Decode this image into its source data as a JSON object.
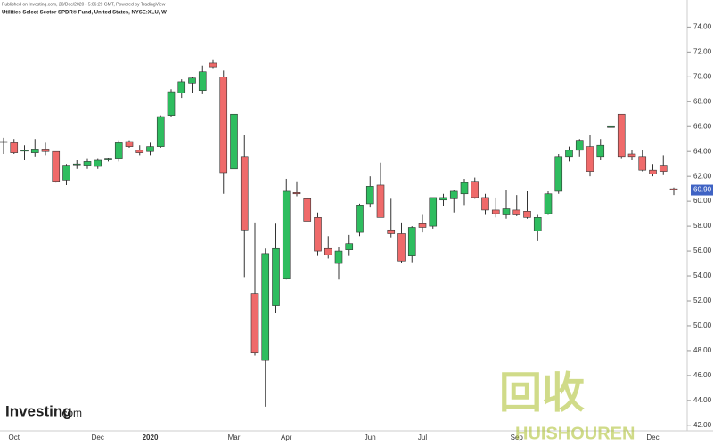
{
  "chart_data": {
    "type": "candlestick",
    "published": "Published on Investing.com, 20/Dec/2020 - 5:06:29 GMT, Powered by TradingView",
    "title": "Utilities Select Sector SPDR® Fund, United States, NYSE:XLU, W",
    "logo": "Investing",
    "logo_suffix": ".com",
    "watermark": [
      "回收",
      "HUISHOUREN"
    ],
    "up_color": "#2ebd5f",
    "down_color": "#ef6a6a",
    "ylim": [
      41.7,
      74.6
    ],
    "yticks": [
      {
        "value": 42,
        "label": "42.00"
      },
      {
        "value": 44,
        "label": "44.00"
      },
      {
        "value": 46,
        "label": "46.00"
      },
      {
        "value": 48,
        "label": "48.00"
      },
      {
        "value": 50,
        "label": "50.00"
      },
      {
        "value": 52,
        "label": "52.00"
      },
      {
        "value": 54,
        "label": "54.00"
      },
      {
        "value": 56,
        "label": "56.00"
      },
      {
        "value": 58,
        "label": "58.00"
      },
      {
        "value": 60,
        "label": "60.00"
      },
      {
        "value": 62,
        "label": "62.00"
      },
      {
        "value": 64,
        "label": "64.00"
      },
      {
        "value": 66,
        "label": "66.00"
      },
      {
        "value": 68,
        "label": "68.00"
      },
      {
        "value": 70,
        "label": "70.00"
      },
      {
        "value": 72,
        "label": "72.00"
      },
      {
        "value": 74,
        "label": "74.00"
      }
    ],
    "last_price": {
      "value": 60.9,
      "label": "60.90"
    },
    "categories": [
      null,
      "Oct",
      null,
      null,
      null,
      null,
      null,
      null,
      null,
      "Dec",
      null,
      null,
      null,
      null,
      "2020",
      null,
      null,
      null,
      null,
      null,
      null,
      null,
      "Mar",
      null,
      null,
      null,
      null,
      "Apr",
      null,
      null,
      null,
      null,
      null,
      null,
      null,
      "Jun",
      null,
      null,
      null,
      null,
      "Jul",
      null,
      null,
      null,
      null,
      null,
      null,
      null,
      null,
      "Sep",
      null,
      null,
      null,
      null,
      null,
      null,
      null,
      null,
      null,
      null,
      null,
      null,
      "Dec",
      null,
      null
    ],
    "open": [
      64.8,
      64.7,
      64.1,
      63.9,
      64.2,
      64.0,
      61.7,
      63.0,
      62.9,
      62.8,
      63.4,
      63.4,
      64.8,
      64.1,
      64.0,
      64.4,
      66.9,
      68.7,
      69.5,
      68.9,
      71.1,
      70.0,
      62.6,
      63.6,
      52.6,
      47.2,
      51.6,
      53.8,
      60.7,
      60.2,
      58.7,
      56.2,
      55.0,
      56.1,
      57.5,
      59.8,
      61.3,
      57.7,
      57.4,
      55.6,
      58.2,
      58.0,
      60.1,
      60.2,
      60.6,
      61.6,
      60.3,
      59.3,
      58.9,
      59.3,
      59.2,
      57.6,
      59.0,
      60.8,
      63.6,
      64.1,
      64.4,
      63.6,
      66.0,
      67.0,
      63.8,
      63.6,
      62.5,
      62.9,
      61.0
    ],
    "high": [
      65.1,
      65.0,
      64.5,
      65.0,
      64.7,
      64.0,
      63.0,
      63.3,
      63.4,
      63.4,
      63.5,
      64.9,
      64.9,
      64.5,
      64.7,
      66.9,
      69.0,
      69.8,
      70.0,
      70.9,
      71.4,
      70.5,
      68.8,
      65.3,
      58.3,
      56.2,
      58.2,
      61.8,
      61.6,
      60.3,
      59.1,
      57.2,
      56.3,
      57.3,
      59.8,
      62.0,
      63.1,
      60.2,
      58.3,
      58.0,
      58.9,
      60.2,
      60.6,
      60.9,
      61.8,
      61.9,
      60.6,
      60.3,
      60.9,
      60.5,
      60.8,
      58.9,
      60.8,
      63.8,
      64.4,
      65.0,
      65.3,
      65.0,
      67.9,
      67.0,
      64.1,
      64.1,
      63.0,
      63.7,
      61.1
    ],
    "low": [
      63.8,
      63.8,
      63.3,
      63.6,
      63.7,
      61.5,
      61.3,
      62.6,
      62.6,
      62.6,
      63.2,
      63.2,
      64.3,
      63.7,
      63.7,
      64.3,
      66.8,
      68.3,
      68.7,
      68.6,
      70.7,
      60.6,
      62.4,
      53.9,
      47.6,
      43.5,
      51.0,
      53.7,
      60.4,
      58.4,
      55.6,
      55.4,
      53.7,
      55.6,
      57.2,
      59.5,
      58.7,
      57.1,
      55.0,
      55.1,
      57.5,
      57.8,
      59.6,
      59.1,
      59.7,
      60.2,
      58.9,
      58.7,
      58.6,
      58.8,
      58.6,
      56.8,
      58.9,
      60.6,
      63.2,
      63.6,
      62.0,
      63.3,
      65.3,
      63.4,
      63.3,
      62.4,
      62.0,
      62.1,
      60.5
    ],
    "close": [
      64.8,
      63.9,
      64.1,
      64.2,
      64.0,
      61.6,
      62.9,
      63.0,
      63.2,
      63.3,
      63.4,
      64.7,
      64.4,
      63.9,
      64.4,
      66.8,
      68.8,
      69.6,
      69.9,
      70.4,
      70.8,
      62.3,
      67.0,
      57.7,
      47.8,
      55.8,
      56.2,
      60.8,
      60.6,
      58.4,
      56.0,
      55.7,
      56.0,
      56.6,
      59.7,
      61.2,
      58.7,
      57.4,
      55.2,
      57.9,
      57.9,
      60.3,
      60.3,
      60.8,
      61.5,
      60.3,
      59.3,
      59.0,
      59.4,
      58.9,
      58.7,
      58.7,
      60.6,
      63.6,
      64.1,
      64.9,
      62.4,
      64.5,
      66.0,
      63.6,
      63.6,
      62.5,
      62.2,
      62.4,
      60.9
    ]
  }
}
